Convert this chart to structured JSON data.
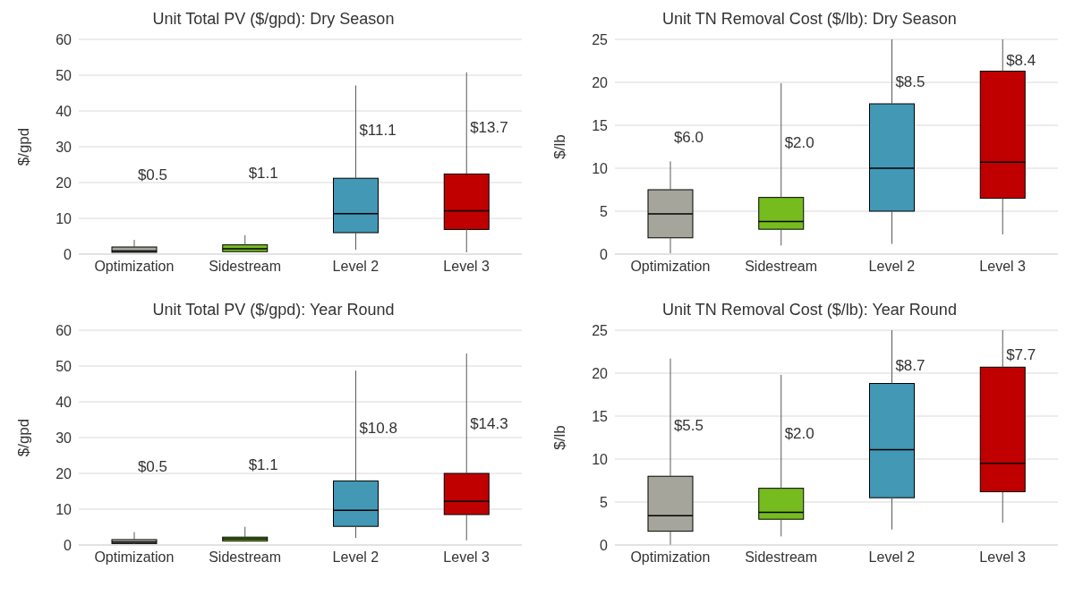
{
  "chart_data": [
    {
      "type": "box",
      "title": "Unit Total PV ($/gpd): Dry Season",
      "ylabel": "$/gpd",
      "categories": [
        "Optimization",
        "Sidestream",
        "Level 2",
        "Level 3"
      ],
      "colors": [
        "#a5a59b",
        "#77bc1f",
        "#4298b5",
        "#c00000"
      ],
      "ylim": [
        0,
        60
      ],
      "yticks": [
        0,
        10,
        20,
        30,
        40,
        50,
        60
      ],
      "grid": "y",
      "boxes": [
        {
          "low": 0.5,
          "q1": 0.5,
          "median": 0.9,
          "q3": 2.0,
          "high": 4
        },
        {
          "low": 0.7,
          "q1": 0.7,
          "median": 1.5,
          "q3": 2.6,
          "high": 5.3
        },
        {
          "low": 1.2,
          "q1": 6.0,
          "median": 11.3,
          "q3": 21.2,
          "high": 47.1
        },
        {
          "low": 0.5,
          "q1": 6.9,
          "median": 12.1,
          "q3": 22.4,
          "high": 50.8
        }
      ],
      "annotations": [
        "$0.5",
        "$1.1",
        "$11.1",
        "$13.7"
      ]
    },
    {
      "type": "box",
      "title": "Unit TN Removal Cost ($/lb): Dry Season",
      "ylabel": "$/lb",
      "categories": [
        "Optimization",
        "Sidestream",
        "Level 2",
        "Level 3"
      ],
      "colors": [
        "#a5a59b",
        "#77bc1f",
        "#4298b5",
        "#c00000"
      ],
      "ylim": [
        0,
        25
      ],
      "yticks": [
        0,
        5,
        10,
        15,
        20,
        25
      ],
      "grid": "y",
      "boxes": [
        {
          "low": 0.1,
          "q1": 1.9,
          "median": 4.7,
          "q3": 7.5,
          "high": 10.8
        },
        {
          "low": 1.0,
          "q1": 2.9,
          "median": 3.8,
          "q3": 6.6,
          "high": 19.9
        },
        {
          "low": 1.2,
          "q1": 5.0,
          "median": 10.0,
          "q3": 17.5,
          "high": 25
        },
        {
          "low": 2.3,
          "q1": 6.5,
          "median": 10.7,
          "q3": 21.3,
          "high": 25
        }
      ],
      "annotations": [
        "$6.0",
        "$2.0",
        "$8.5",
        "$8.4"
      ]
    },
    {
      "type": "box",
      "title": "Unit Total PV ($/gpd): Year Round",
      "ylabel": "$/gpd",
      "categories": [
        "Optimization",
        "Sidestream",
        "Level 2",
        "Level 3"
      ],
      "colors": [
        "#a5a59b",
        "#77bc1f",
        "#4298b5",
        "#c00000"
      ],
      "ylim": [
        0,
        60
      ],
      "yticks": [
        0,
        10,
        20,
        30,
        40,
        50,
        60
      ],
      "grid": "y",
      "boxes": [
        {
          "low": 0.2,
          "q1": 0.4,
          "median": 0.8,
          "q3": 1.5,
          "high": 3.6
        },
        {
          "low": 1.1,
          "q1": 1.1,
          "median": 1.7,
          "q3": 2.2,
          "high": 5.1
        },
        {
          "low": 2.0,
          "q1": 5.2,
          "median": 9.7,
          "q3": 17.9,
          "high": 48.7
        },
        {
          "low": 1.3,
          "q1": 8.5,
          "median": 12.2,
          "q3": 20.0,
          "high": 53.5
        }
      ],
      "annotations": [
        "$0.5",
        "$1.1",
        "$10.8",
        "$14.3"
      ]
    },
    {
      "type": "box",
      "title": "Unit TN Removal Cost ($/lb): Year Round",
      "ylabel": "$/lb",
      "categories": [
        "Optimization",
        "Sidestream",
        "Level 2",
        "Level 3"
      ],
      "colors": [
        "#a5a59b",
        "#77bc1f",
        "#4298b5",
        "#c00000"
      ],
      "ylim": [
        0,
        25
      ],
      "yticks": [
        0,
        5,
        10,
        15,
        20,
        25
      ],
      "grid": "y",
      "boxes": [
        {
          "low": 0,
          "q1": 1.6,
          "median": 3.4,
          "q3": 8.0,
          "high": 21.7
        },
        {
          "low": 1.0,
          "q1": 3.0,
          "median": 3.8,
          "q3": 6.6,
          "high": 19.8
        },
        {
          "low": 1.8,
          "q1": 5.5,
          "median": 11.1,
          "q3": 18.8,
          "high": 25
        },
        {
          "low": 2.6,
          "q1": 6.2,
          "median": 9.5,
          "q3": 20.7,
          "high": 25
        }
      ],
      "annotations": [
        "$5.5",
        "$2.0",
        "$8.7",
        "$7.7"
      ]
    }
  ]
}
